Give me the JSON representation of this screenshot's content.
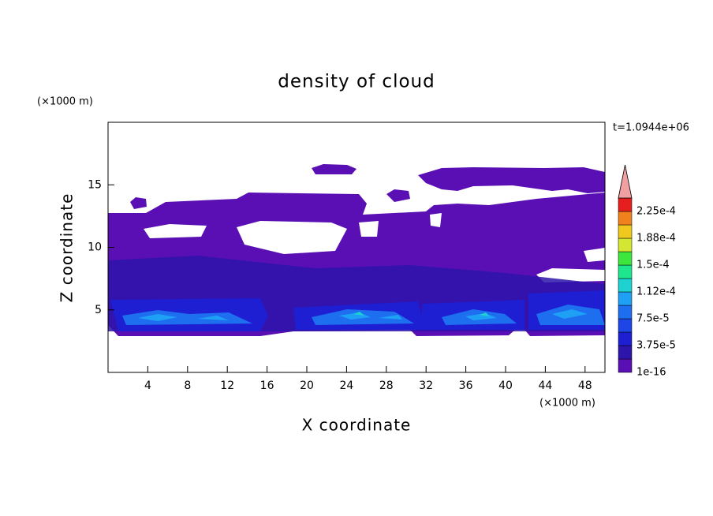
{
  "chart_data": {
    "type": "contour",
    "title": "density of cloud",
    "time_label": "t=1.0944e+06",
    "x_label": "X coordinate",
    "y_label": "Z coordinate",
    "x_unit": "(×1000 m)",
    "y_unit": "(×1000 m)",
    "xlim": [
      0,
      50
    ],
    "ylim": [
      0,
      20
    ],
    "xticks": [
      4,
      8,
      12,
      16,
      20,
      24,
      28,
      32,
      36,
      40,
      44,
      48
    ],
    "yticks": [
      5,
      10,
      15
    ],
    "colorbar": {
      "labels": [
        "1e-16",
        "3.75e-5",
        "7.5e-5",
        "1.12e-4",
        "1.5e-4",
        "1.88e-4",
        "2.25e-4"
      ],
      "colors": [
        "#5a0fb4",
        "#2d14aa",
        "#1e1ed2",
        "#1e46e6",
        "#1e6ef0",
        "#1ea0f5",
        "#1ed2d2",
        "#1ee68c",
        "#3ce63c",
        "#d2e632",
        "#f0c81e",
        "#f0821e",
        "#e61e1e"
      ],
      "extend_color": "#f0a0a0"
    }
  }
}
